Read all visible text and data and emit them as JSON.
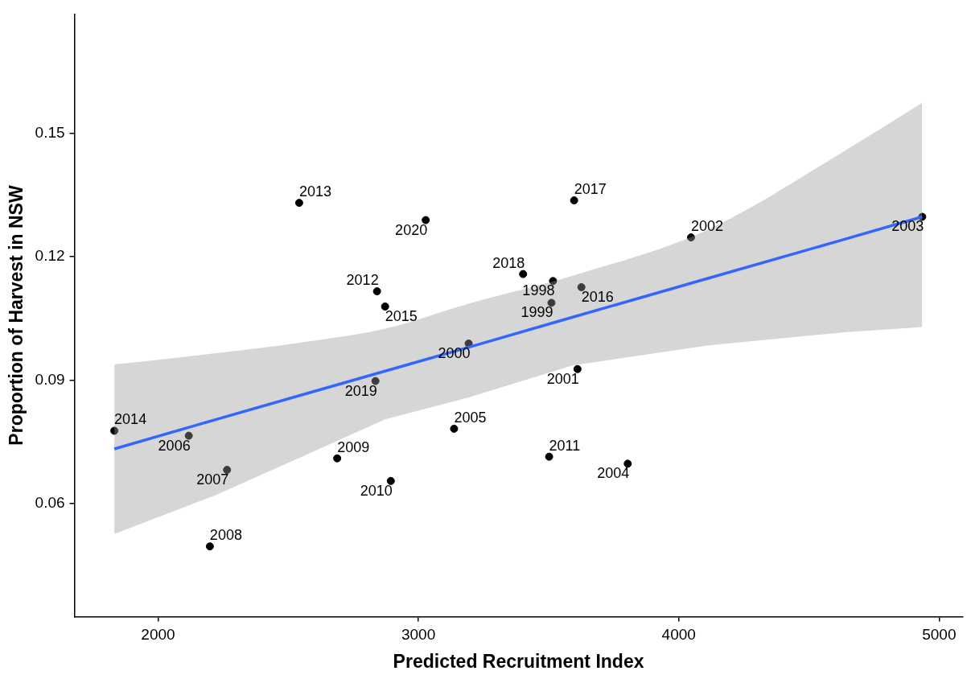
{
  "chart_data": {
    "type": "scatter",
    "xlabel": "Predicted Recruitment Index",
    "ylabel": "Proportion of Harvest in NSW",
    "xlim": [
      1679,
      5090
    ],
    "ylim": [
      0.0325,
      0.179
    ],
    "xticks": [
      2000,
      3000,
      4000,
      5000
    ],
    "yticks": [
      0.06,
      0.09,
      0.12,
      0.15
    ],
    "grid": false,
    "legend": false,
    "marker": "circle",
    "series": [
      {
        "color": "#000000",
        "x": [
          1832,
          2118,
          2265,
          2199,
          2542,
          3028,
          2841,
          2872,
          2835,
          3193,
          3137,
          2688,
          2894,
          3598,
          4047,
          4935,
          3402,
          3517,
          3626,
          3511,
          3611,
          3502,
          3804
        ],
        "values": [
          0.0777,
          0.0765,
          0.0682,
          0.0496,
          0.1331,
          0.1289,
          0.1116,
          0.1079,
          0.0898,
          0.0989,
          0.0782,
          0.071,
          0.0655,
          0.1337,
          0.1247,
          0.1297,
          0.1158,
          0.1141,
          0.1126,
          0.1088,
          0.0927,
          0.0714,
          0.0697
        ]
      },
      {
        "type": "line",
        "color": "#3366ff",
        "marker": "none",
        "x": [
          1832,
          2215,
          2545,
          2872,
          3193,
          3592,
          4109,
          4629,
          4935
        ],
        "values": [
          0.0733,
          0.0803,
          0.0863,
          0.0922,
          0.098,
          0.1053,
          0.1147,
          0.1241,
          0.1297
        ],
        "lower": [
          0.0526,
          0.0619,
          0.0712,
          0.0805,
          0.0858,
          0.0936,
          0.0984,
          0.1016,
          0.1029
        ],
        "upper": [
          0.0938,
          0.0965,
          0.0991,
          0.1025,
          0.1086,
          0.1154,
          0.1265,
          0.1454,
          0.1574
        ]
      }
    ],
    "annotations": [
      {
        "text": "2014",
        "x": 1832,
        "y": 0.0777
      },
      {
        "text": "2006",
        "x": 2118,
        "y": 0.0765
      },
      {
        "text": "2007",
        "x": 2265,
        "y": 0.0682
      },
      {
        "text": "2008",
        "x": 2199,
        "y": 0.0496
      },
      {
        "text": "2013",
        "x": 2542,
        "y": 0.1331
      },
      {
        "text": "2020",
        "x": 3028,
        "y": 0.1289
      },
      {
        "text": "2012",
        "x": 2841,
        "y": 0.1116
      },
      {
        "text": "2015",
        "x": 2872,
        "y": 0.1079
      },
      {
        "text": "2019",
        "x": 2835,
        "y": 0.0898
      },
      {
        "text": "2000",
        "x": 3193,
        "y": 0.0989
      },
      {
        "text": "2005",
        "x": 3137,
        "y": 0.0782
      },
      {
        "text": "2009",
        "x": 2688,
        "y": 0.071
      },
      {
        "text": "2010",
        "x": 2894,
        "y": 0.0655
      },
      {
        "text": "2017",
        "x": 3598,
        "y": 0.1337
      },
      {
        "text": "2002",
        "x": 4047,
        "y": 0.1247
      },
      {
        "text": "2003",
        "x": 4935,
        "y": 0.1297
      },
      {
        "text": "2018",
        "x": 3402,
        "y": 0.1158
      },
      {
        "text": "1998",
        "x": 3517,
        "y": 0.1141
      },
      {
        "text": "2016",
        "x": 3626,
        "y": 0.1126
      },
      {
        "text": "1999",
        "x": 3511,
        "y": 0.1088
      },
      {
        "text": "2001",
        "x": 3611,
        "y": 0.0927
      },
      {
        "text": "2011",
        "x": 3502,
        "y": 0.0714
      },
      {
        "text": "2004",
        "x": 3804,
        "y": 0.0697
      }
    ]
  }
}
